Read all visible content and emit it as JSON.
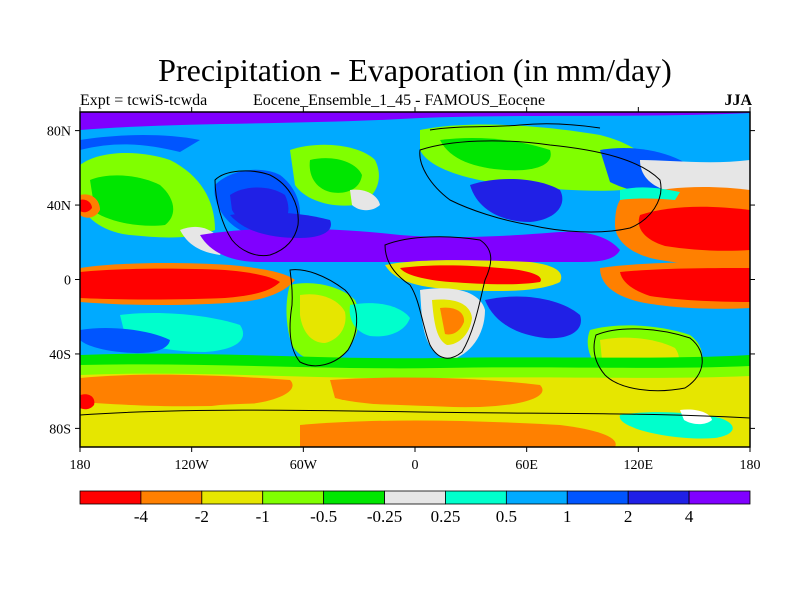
{
  "figure": {
    "title": "Precipitation - Evaporation (in mm/day)",
    "left_label": "Expt = tcwiS-tcwda",
    "center_label": "Eocene_Ensemble_1_45 - FAMOUS_Eocene",
    "right_label": "JJA"
  },
  "map": {
    "projection": "cylindrical-equidistant",
    "lon_range": [
      -180,
      180
    ],
    "lat_range": [
      -90,
      90
    ],
    "lat_ticks": [
      {
        "value": 80,
        "label": "80N"
      },
      {
        "value": 40,
        "label": "40N"
      },
      {
        "value": 0,
        "label": "0"
      },
      {
        "value": -40,
        "label": "40S"
      },
      {
        "value": -80,
        "label": "80S"
      }
    ],
    "lon_ticks": [
      {
        "value": -180,
        "label": "180"
      },
      {
        "value": -120,
        "label": "120W"
      },
      {
        "value": -60,
        "label": "60W"
      },
      {
        "value": 0,
        "label": "0"
      },
      {
        "value": 60,
        "label": "60E"
      },
      {
        "value": 120,
        "label": "120E"
      },
      {
        "value": 180,
        "label": "180"
      }
    ]
  },
  "colorbar": {
    "colors": [
      "#ff0000",
      "#ff8000",
      "#e6e600",
      "#80ff00",
      "#00e600",
      "#e6e6e6",
      "#00ffcc",
      "#00aaff",
      "#0055ff",
      "#2020e6",
      "#8000ff"
    ],
    "labels": [
      "-4",
      "-2",
      "-1",
      "-0.5",
      "-0.25",
      "0.25",
      "0.5",
      "1",
      "2",
      "4"
    ]
  }
}
